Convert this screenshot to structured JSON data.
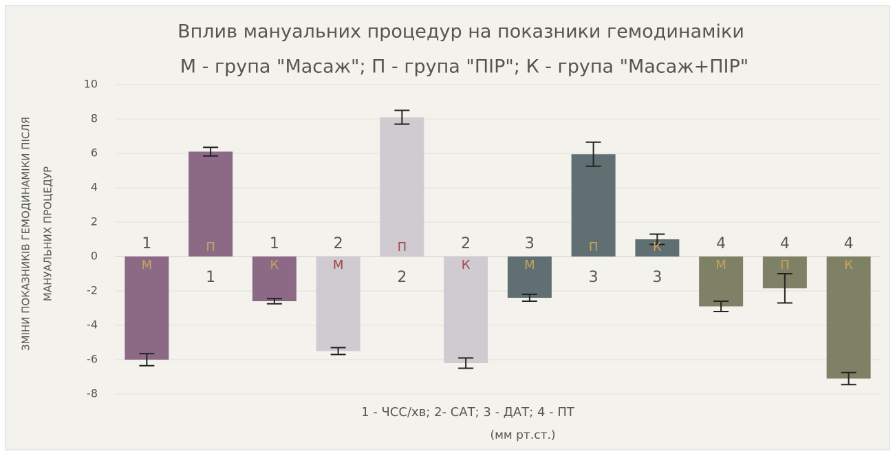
{
  "chart_data": {
    "type": "bar",
    "title": "Вплив мануальних процедур на показники гемодинаміки",
    "subtitle": "М - група \"Масаж\";  П - група \"ПІР\";  К - група \"Масаж+ПІР\"",
    "y_label": [
      "ЗМІНИ ПОКАЗНИКІВ ГЕМОДИНАМІКИ ПІСЛЯ",
      "МАНУАЛЬНИХ ПРОЦЕДУР"
    ],
    "x_label": [
      "1 - ЧСС/хв; 2- САТ; 3 - ДАТ; 4 - ПТ",
      "(мм рт.ст.)"
    ],
    "groups": [
      "1",
      "1",
      "1",
      "2",
      "2",
      "2",
      "3",
      "3",
      "3",
      "4",
      "4",
      "4"
    ],
    "letters": [
      "М",
      "П",
      "К",
      "М",
      "П",
      "К",
      "М",
      "П",
      "К",
      "М",
      "П",
      "К"
    ],
    "values": [
      -6.0,
      6.1,
      -2.6,
      -5.5,
      8.1,
      -6.2,
      -2.4,
      5.95,
      1.0,
      -2.9,
      -1.85,
      -7.1
    ],
    "errors": [
      0.35,
      0.25,
      0.15,
      0.2,
      0.4,
      0.3,
      0.2,
      0.7,
      0.3,
      0.3,
      0.85,
      0.35
    ],
    "colors": [
      "#8c6a86",
      "#8c6a86",
      "#8c6a86",
      "#cfcbd0",
      "#cfcbd0",
      "#cfcbd0",
      "#5f6f72",
      "#5f6f72",
      "#5f6f72",
      "#7e8166",
      "#7e8166",
      "#7e8166"
    ],
    "letter_colors": [
      "#c9a35a",
      "#c9a35a",
      "#c9a35a",
      "#a0474a",
      "#a0474a",
      "#a0474a",
      "#c9a35a",
      "#c9a35a",
      "#c9a35a",
      "#c9a35a",
      "#c9a35a",
      "#c9a35a"
    ],
    "ylim": [
      -8,
      10
    ],
    "yticks": [
      -8,
      -6,
      -4,
      -2,
      0,
      2,
      4,
      6,
      8,
      10
    ],
    "grid": true
  }
}
